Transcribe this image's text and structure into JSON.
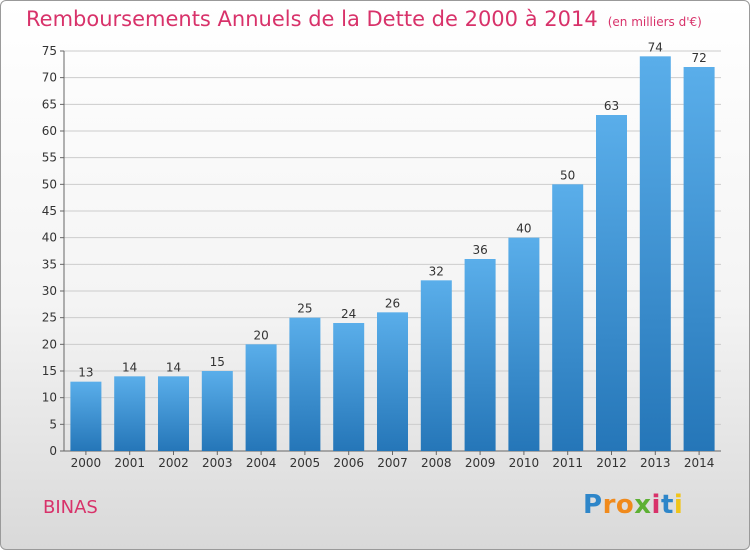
{
  "title": "Remboursements Annuels de la Dette de 2000 à 2014",
  "unit": "(en milliers d'€)",
  "commune": "BINAS",
  "logo": {
    "letters": [
      "P",
      "r",
      "o",
      "x",
      "i",
      "t",
      "i"
    ],
    "colors": [
      "#2e86c9",
      "#f08a1c",
      "#f08a1c",
      "#5db033",
      "#d8326a",
      "#2e86c9",
      "#f0c419"
    ]
  },
  "colors": {
    "accent": "#d8326a",
    "bar_light": "#5aaeea",
    "bar_dark": "#2576b8",
    "grid": "#cccccc"
  },
  "chart_data": {
    "type": "bar",
    "categories": [
      "2000",
      "2001",
      "2002",
      "2003",
      "2004",
      "2005",
      "2006",
      "2007",
      "2008",
      "2009",
      "2010",
      "2011",
      "2012",
      "2013",
      "2014"
    ],
    "values": [
      13,
      14,
      14,
      15,
      20,
      25,
      24,
      26,
      32,
      36,
      40,
      50,
      63,
      74,
      72
    ],
    "ylim": [
      0,
      75
    ],
    "yticks": [
      0,
      5,
      10,
      15,
      20,
      25,
      30,
      35,
      40,
      45,
      50,
      55,
      60,
      65,
      70,
      75
    ],
    "grid": true
  }
}
